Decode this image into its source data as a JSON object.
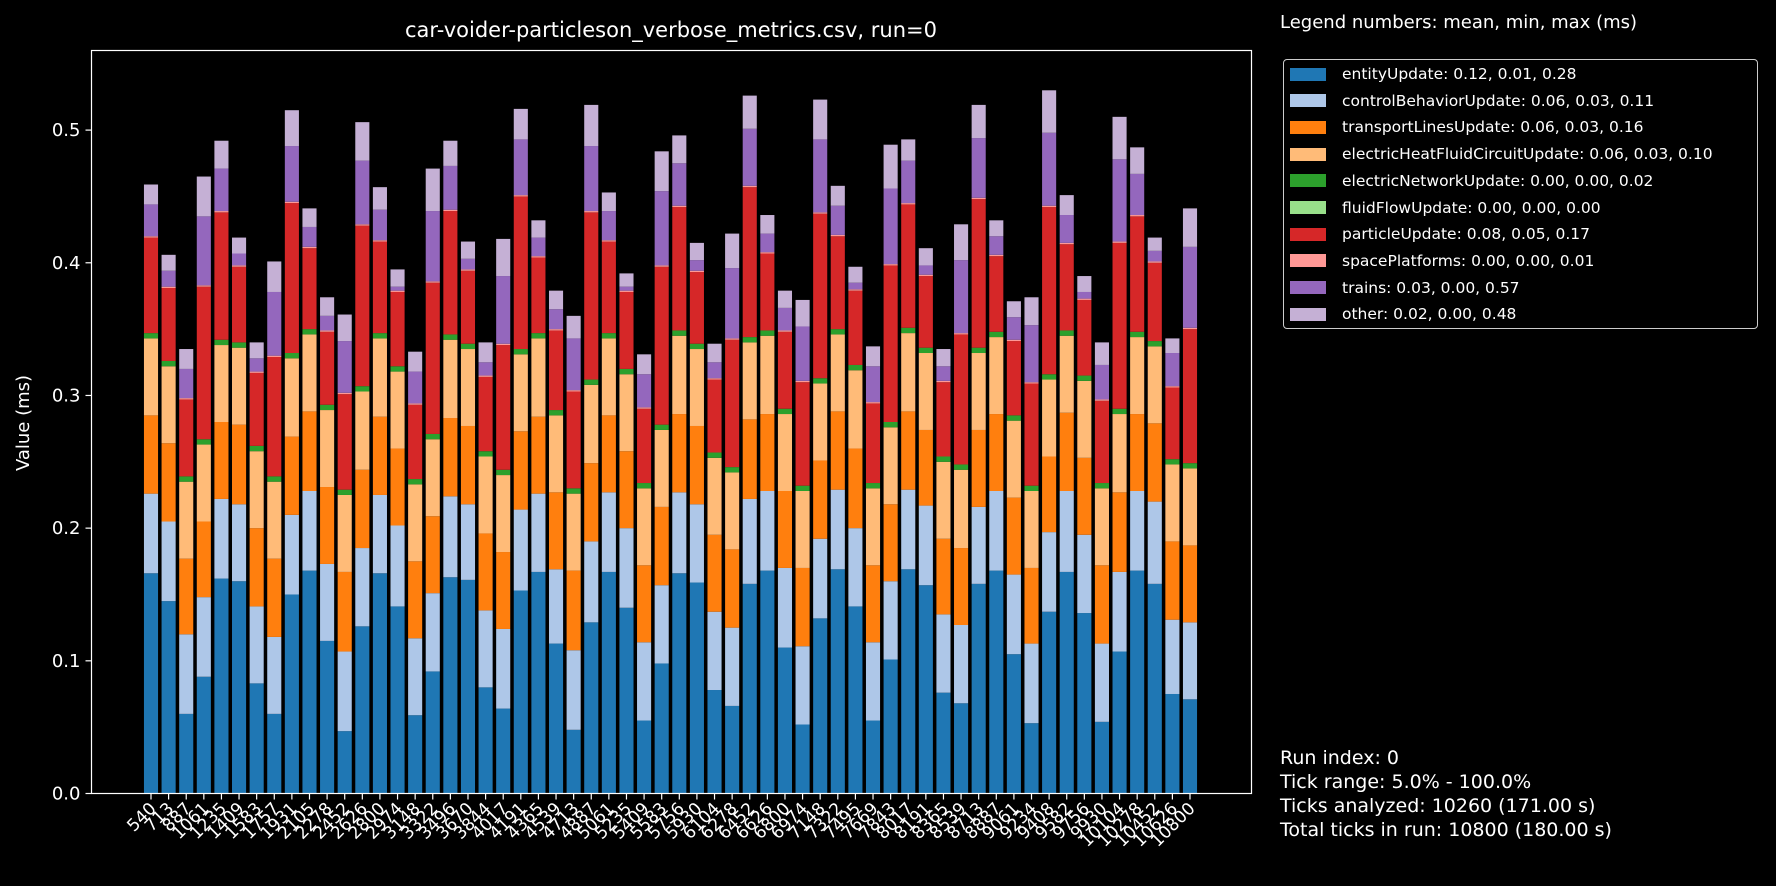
{
  "chart_data": {
    "type": "bar",
    "stacked": true,
    "title": "car-voider-particleson_verbose_metrics.csv, run=0",
    "xlabel": "",
    "ylabel": "Value (ms)",
    "ylim": [
      0,
      0.56
    ],
    "yticks": [
      0.0,
      0.1,
      0.2,
      0.3,
      0.4,
      0.5
    ],
    "ytick_labels": [
      "0.0",
      "0.1",
      "0.2",
      "0.3",
      "0.4",
      "0.5"
    ],
    "grid": false,
    "legend_position": "outside-right",
    "categories": [
      "540",
      "713",
      "887",
      "1061",
      "1235",
      "1409",
      "1583",
      "1757",
      "1931",
      "2105",
      "2278",
      "2452",
      "2626",
      "2800",
      "2974",
      "3148",
      "3322",
      "3496",
      "3670",
      "3844",
      "4017",
      "4191",
      "4365",
      "4539",
      "4713",
      "4887",
      "5061",
      "5235",
      "5409",
      "5583",
      "5756",
      "5930",
      "6104",
      "6278",
      "6452",
      "6626",
      "6800",
      "6974",
      "7148",
      "7322",
      "7495",
      "7669",
      "7843",
      "8017",
      "8191",
      "8365",
      "8539",
      "8713",
      "8887",
      "9061",
      "9234",
      "9408",
      "9582",
      "9756",
      "9930",
      "10104",
      "10278",
      "10452",
      "10626",
      "10800"
    ],
    "series": [
      {
        "name": "entityUpdate: 0.12, 0.01, 0.28",
        "color": "#1f77b4",
        "values": [
          0.166,
          0.145,
          0.06,
          0.088,
          0.162,
          0.16,
          0.083,
          0.06,
          0.15,
          0.168,
          0.115,
          0.047,
          0.126,
          0.166,
          0.141,
          0.059,
          0.092,
          0.163,
          0.161,
          0.08,
          0.064,
          0.153,
          0.167,
          0.113,
          0.048,
          0.129,
          0.167,
          0.14,
          0.055,
          0.098,
          0.166,
          0.159,
          0.078,
          0.066,
          0.158,
          0.168,
          0.11,
          0.052,
          0.132,
          0.169,
          0.141,
          0.055,
          0.101,
          0.169,
          0.157,
          0.076,
          0.068,
          0.158,
          0.168,
          0.105,
          0.053,
          0.137,
          0.167,
          0.136,
          0.054,
          0.107,
          0.168,
          0.158,
          0.075,
          0.071
        ]
      },
      {
        "name": "controlBehaviorUpdate: 0.06, 0.03, 0.11",
        "color": "#aec7e8",
        "values": [
          0.06,
          0.06,
          0.06,
          0.06,
          0.06,
          0.058,
          0.058,
          0.058,
          0.06,
          0.06,
          0.058,
          0.06,
          0.059,
          0.059,
          0.061,
          0.058,
          0.059,
          0.061,
          0.057,
          0.058,
          0.06,
          0.061,
          0.059,
          0.056,
          0.06,
          0.061,
          0.06,
          0.06,
          0.059,
          0.059,
          0.061,
          0.059,
          0.059,
          0.059,
          0.064,
          0.06,
          0.06,
          0.059,
          0.06,
          0.06,
          0.059,
          0.059,
          0.059,
          0.06,
          0.06,
          0.059,
          0.059,
          0.058,
          0.06,
          0.06,
          0.06,
          0.06,
          0.061,
          0.059,
          0.059,
          0.06,
          0.06,
          0.062,
          0.056,
          0.058
        ]
      },
      {
        "name": "transportLinesUpdate: 0.06, 0.03, 0.16",
        "color": "#ff7f0e",
        "values": [
          0.059,
          0.059,
          0.057,
          0.057,
          0.058,
          0.06,
          0.059,
          0.059,
          0.059,
          0.06,
          0.058,
          0.06,
          0.059,
          0.059,
          0.058,
          0.058,
          0.058,
          0.059,
          0.059,
          0.058,
          0.058,
          0.059,
          0.058,
          0.058,
          0.06,
          0.059,
          0.058,
          0.058,
          0.058,
          0.059,
          0.059,
          0.059,
          0.058,
          0.059,
          0.06,
          0.058,
          0.058,
          0.059,
          0.059,
          0.059,
          0.06,
          0.058,
          0.058,
          0.059,
          0.057,
          0.057,
          0.058,
          0.058,
          0.058,
          0.058,
          0.057,
          0.057,
          0.059,
          0.058,
          0.059,
          0.06,
          0.058,
          0.059,
          0.059,
          0.058
        ]
      },
      {
        "name": "electricHeatFluidCircuitUpdate: 0.06, 0.03, 0.10",
        "color": "#ffbb78",
        "values": [
          0.058,
          0.058,
          0.058,
          0.058,
          0.058,
          0.058,
          0.058,
          0.058,
          0.059,
          0.058,
          0.058,
          0.058,
          0.059,
          0.059,
          0.058,
          0.058,
          0.058,
          0.059,
          0.058,
          0.058,
          0.058,
          0.058,
          0.059,
          0.058,
          0.058,
          0.059,
          0.058,
          0.058,
          0.058,
          0.058,
          0.059,
          0.058,
          0.058,
          0.058,
          0.058,
          0.059,
          0.058,
          0.058,
          0.058,
          0.058,
          0.059,
          0.058,
          0.058,
          0.059,
          0.058,
          0.058,
          0.059,
          0.058,
          0.058,
          0.058,
          0.058,
          0.058,
          0.058,
          0.058,
          0.058,
          0.059,
          0.058,
          0.058,
          0.058,
          0.058
        ]
      },
      {
        "name": "electricNetworkUpdate: 0.00, 0.00, 0.02",
        "color": "#2ca02c",
        "values": [
          0.004,
          0.004,
          0.004,
          0.004,
          0.004,
          0.004,
          0.004,
          0.004,
          0.004,
          0.004,
          0.004,
          0.004,
          0.004,
          0.004,
          0.004,
          0.004,
          0.004,
          0.004,
          0.004,
          0.004,
          0.004,
          0.004,
          0.004,
          0.004,
          0.004,
          0.004,
          0.004,
          0.004,
          0.004,
          0.004,
          0.004,
          0.004,
          0.004,
          0.004,
          0.004,
          0.004,
          0.004,
          0.004,
          0.004,
          0.004,
          0.004,
          0.004,
          0.004,
          0.004,
          0.004,
          0.004,
          0.004,
          0.004,
          0.004,
          0.004,
          0.004,
          0.004,
          0.004,
          0.004,
          0.004,
          0.004,
          0.004,
          0.004,
          0.004,
          0.004
        ]
      },
      {
        "name": "fluidFlowUpdate: 0.00, 0.00, 0.00",
        "color": "#98df8a",
        "values": [
          0.0,
          0.0,
          0.0,
          0.0,
          0.0,
          0.0,
          0.0,
          0.0,
          0.0,
          0.0,
          0.0,
          0.0,
          0.0,
          0.0,
          0.0,
          0.0,
          0.0,
          0.0,
          0.0,
          0.0,
          0.0,
          0.0,
          0.0,
          0.0,
          0.0,
          0.0,
          0.0,
          0.0,
          0.0,
          0.0,
          0.0,
          0.0,
          0.0,
          0.0,
          0.0,
          0.0,
          0.0,
          0.0,
          0.0,
          0.0,
          0.0,
          0.0,
          0.0,
          0.0,
          0.0,
          0.0,
          0.0,
          0.0,
          0.0,
          0.0,
          0.0,
          0.0,
          0.0,
          0.0,
          0.0,
          0.0,
          0.0,
          0.0,
          0.0,
          0.0
        ]
      },
      {
        "name": "particleUpdate: 0.08, 0.05, 0.17",
        "color": "#d62728",
        "values": [
          0.072,
          0.055,
          0.058,
          0.115,
          0.096,
          0.057,
          0.055,
          0.09,
          0.113,
          0.061,
          0.055,
          0.072,
          0.121,
          0.069,
          0.056,
          0.056,
          0.114,
          0.093,
          0.055,
          0.056,
          0.094,
          0.115,
          0.057,
          0.06,
          0.073,
          0.126,
          0.069,
          0.058,
          0.056,
          0.119,
          0.093,
          0.054,
          0.055,
          0.096,
          0.113,
          0.058,
          0.058,
          0.078,
          0.124,
          0.07,
          0.056,
          0.06,
          0.118,
          0.093,
          0.054,
          0.056,
          0.098,
          0.112,
          0.057,
          0.056,
          0.077,
          0.126,
          0.065,
          0.057,
          0.062,
          0.125,
          0.087,
          0.059,
          0.054,
          0.101
        ]
      },
      {
        "name": "spacePlatforms: 0.00, 0.00, 0.01",
        "color": "#ff9896",
        "values": [
          0.001,
          0.001,
          0.001,
          0.001,
          0.001,
          0.001,
          0.001,
          0.001,
          0.001,
          0.001,
          0.001,
          0.001,
          0.001,
          0.001,
          0.001,
          0.001,
          0.001,
          0.001,
          0.001,
          0.001,
          0.001,
          0.001,
          0.001,
          0.001,
          0.001,
          0.001,
          0.001,
          0.001,
          0.001,
          0.001,
          0.001,
          0.001,
          0.001,
          0.001,
          0.001,
          0.001,
          0.001,
          0.001,
          0.001,
          0.001,
          0.001,
          0.001,
          0.001,
          0.001,
          0.001,
          0.001,
          0.001,
          0.001,
          0.001,
          0.001,
          0.001,
          0.001,
          0.001,
          0.001,
          0.001,
          0.001,
          0.001,
          0.001,
          0.001,
          0.001
        ]
      },
      {
        "name": "trains: 0.03, 0.00, 0.57",
        "color": "#9467bd",
        "values": [
          0.024,
          0.012,
          0.022,
          0.052,
          0.032,
          0.009,
          0.01,
          0.048,
          0.042,
          0.015,
          0.011,
          0.039,
          0.048,
          0.023,
          0.003,
          0.024,
          0.053,
          0.033,
          0.008,
          0.01,
          0.051,
          0.042,
          0.014,
          0.015,
          0.039,
          0.049,
          0.022,
          0.003,
          0.025,
          0.056,
          0.032,
          0.008,
          0.012,
          0.053,
          0.043,
          0.014,
          0.017,
          0.041,
          0.055,
          0.022,
          0.005,
          0.027,
          0.057,
          0.032,
          0.007,
          0.011,
          0.055,
          0.045,
          0.014,
          0.017,
          0.043,
          0.055,
          0.021,
          0.005,
          0.026,
          0.062,
          0.031,
          0.008,
          0.025,
          0.061
        ]
      },
      {
        "name": "other: 0.02, 0.00, 0.48",
        "color": "#c5b0d5",
        "values": [
          0.015,
          0.012,
          0.015,
          0.03,
          0.021,
          0.012,
          0.012,
          0.023,
          0.027,
          0.014,
          0.014,
          0.02,
          0.029,
          0.017,
          0.013,
          0.015,
          0.032,
          0.019,
          0.013,
          0.015,
          0.028,
          0.023,
          0.013,
          0.014,
          0.017,
          0.031,
          0.014,
          0.01,
          0.015,
          0.03,
          0.021,
          0.013,
          0.014,
          0.026,
          0.025,
          0.014,
          0.013,
          0.02,
          0.03,
          0.015,
          0.012,
          0.015,
          0.033,
          0.016,
          0.013,
          0.013,
          0.027,
          0.025,
          0.012,
          0.012,
          0.021,
          0.032,
          0.015,
          0.012,
          0.017,
          0.032,
          0.02,
          0.01,
          0.011,
          0.029
        ]
      }
    ]
  },
  "legend": {
    "heading": "Legend numbers: mean, min, max (ms)"
  },
  "info": {
    "run_index": "Run index: 0",
    "tick_range": "Tick range: 5.0% - 100.0%",
    "ticks_analyzed": "Ticks analyzed: 10260 (171.00 s)",
    "total_ticks": "Total ticks in run: 10800 (180.00 s)"
  }
}
